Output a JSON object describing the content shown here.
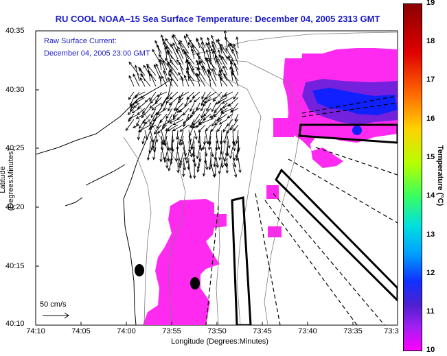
{
  "title": "RU COOL  NOAA–15  Sea Surface Temperature:  December 04, 2005 2313 GMT",
  "current": {
    "label": "Raw Surface Current:",
    "time": "December 04, 2005 23:00 GMT"
  },
  "axes": {
    "ylabel": "Latitude (Degrees:Minutes)",
    "xlabel": "Longitude (Degrees:Minutes)",
    "yticks": [
      "40:35",
      "40:30",
      "40:25",
      "40:20",
      "40:15",
      "40:10"
    ],
    "xticks": [
      "74:10",
      "74:05",
      "74:00",
      "73:55",
      "73:50",
      "73:45",
      "73:40",
      "73:35",
      "73:3"
    ]
  },
  "scale": {
    "label": "50 cm/s"
  },
  "colorbar": {
    "label": "Temperature (°C)",
    "ticks": [
      "19",
      "18",
      "17",
      "16",
      "15",
      "14",
      "13",
      "12",
      "11",
      "10"
    ],
    "min": 10,
    "max": 19
  }
}
